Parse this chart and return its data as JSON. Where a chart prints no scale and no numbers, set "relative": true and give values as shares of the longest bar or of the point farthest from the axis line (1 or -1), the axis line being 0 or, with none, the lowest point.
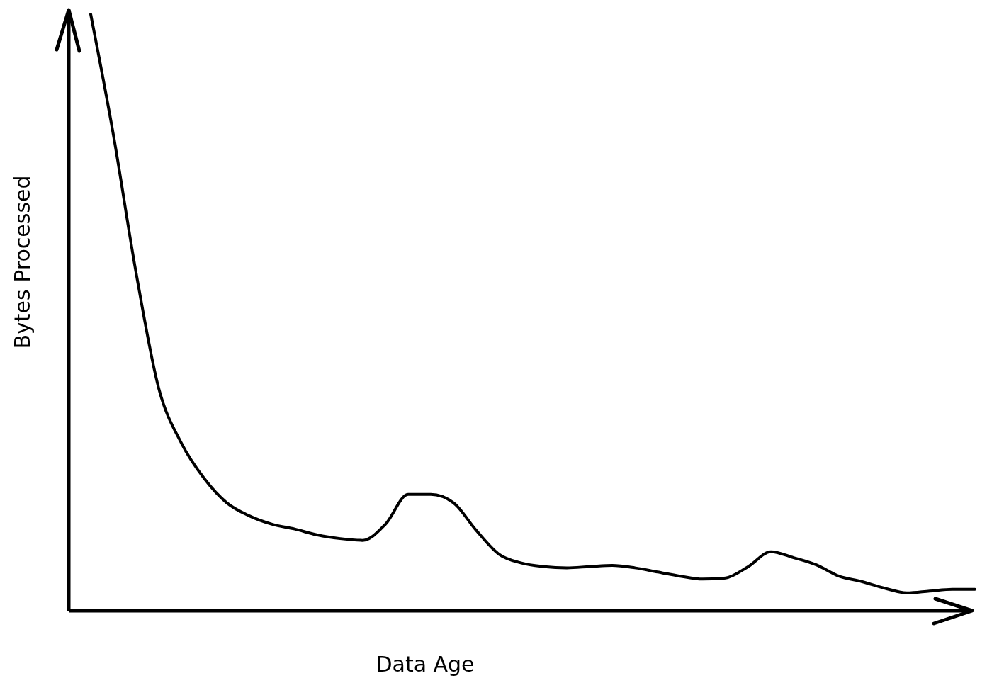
{
  "chart_data": {
    "type": "line",
    "relative": true,
    "xlabel": "Data Age",
    "ylabel": "Bytes Processed",
    "color": "#000000",
    "categories": [
      null,
      null,
      null,
      null,
      null,
      null,
      null,
      null,
      null,
      null,
      null,
      null,
      null,
      null,
      null,
      null,
      null,
      null,
      null,
      null,
      null,
      null,
      null,
      null,
      null,
      null,
      null,
      null,
      null,
      null,
      null,
      null,
      null,
      null,
      null,
      null,
      null,
      null,
      null,
      null
    ],
    "values": [
      1,
      0.798,
      0.567,
      0.373,
      0.281,
      0.222,
      0.181,
      0.159,
      0.145,
      0.137,
      0.127,
      0.121,
      0.118,
      0.145,
      0.195,
      0.195,
      0.181,
      0.135,
      0.095,
      0.08,
      0.074,
      0.072,
      0.074,
      0.076,
      0.072,
      0.065,
      0.058,
      0.053,
      0.055,
      0.074,
      0.099,
      0.089,
      0.077,
      0.058,
      0.049,
      0.038,
      0.03,
      0.033,
      0.036,
      0.036
    ]
  }
}
